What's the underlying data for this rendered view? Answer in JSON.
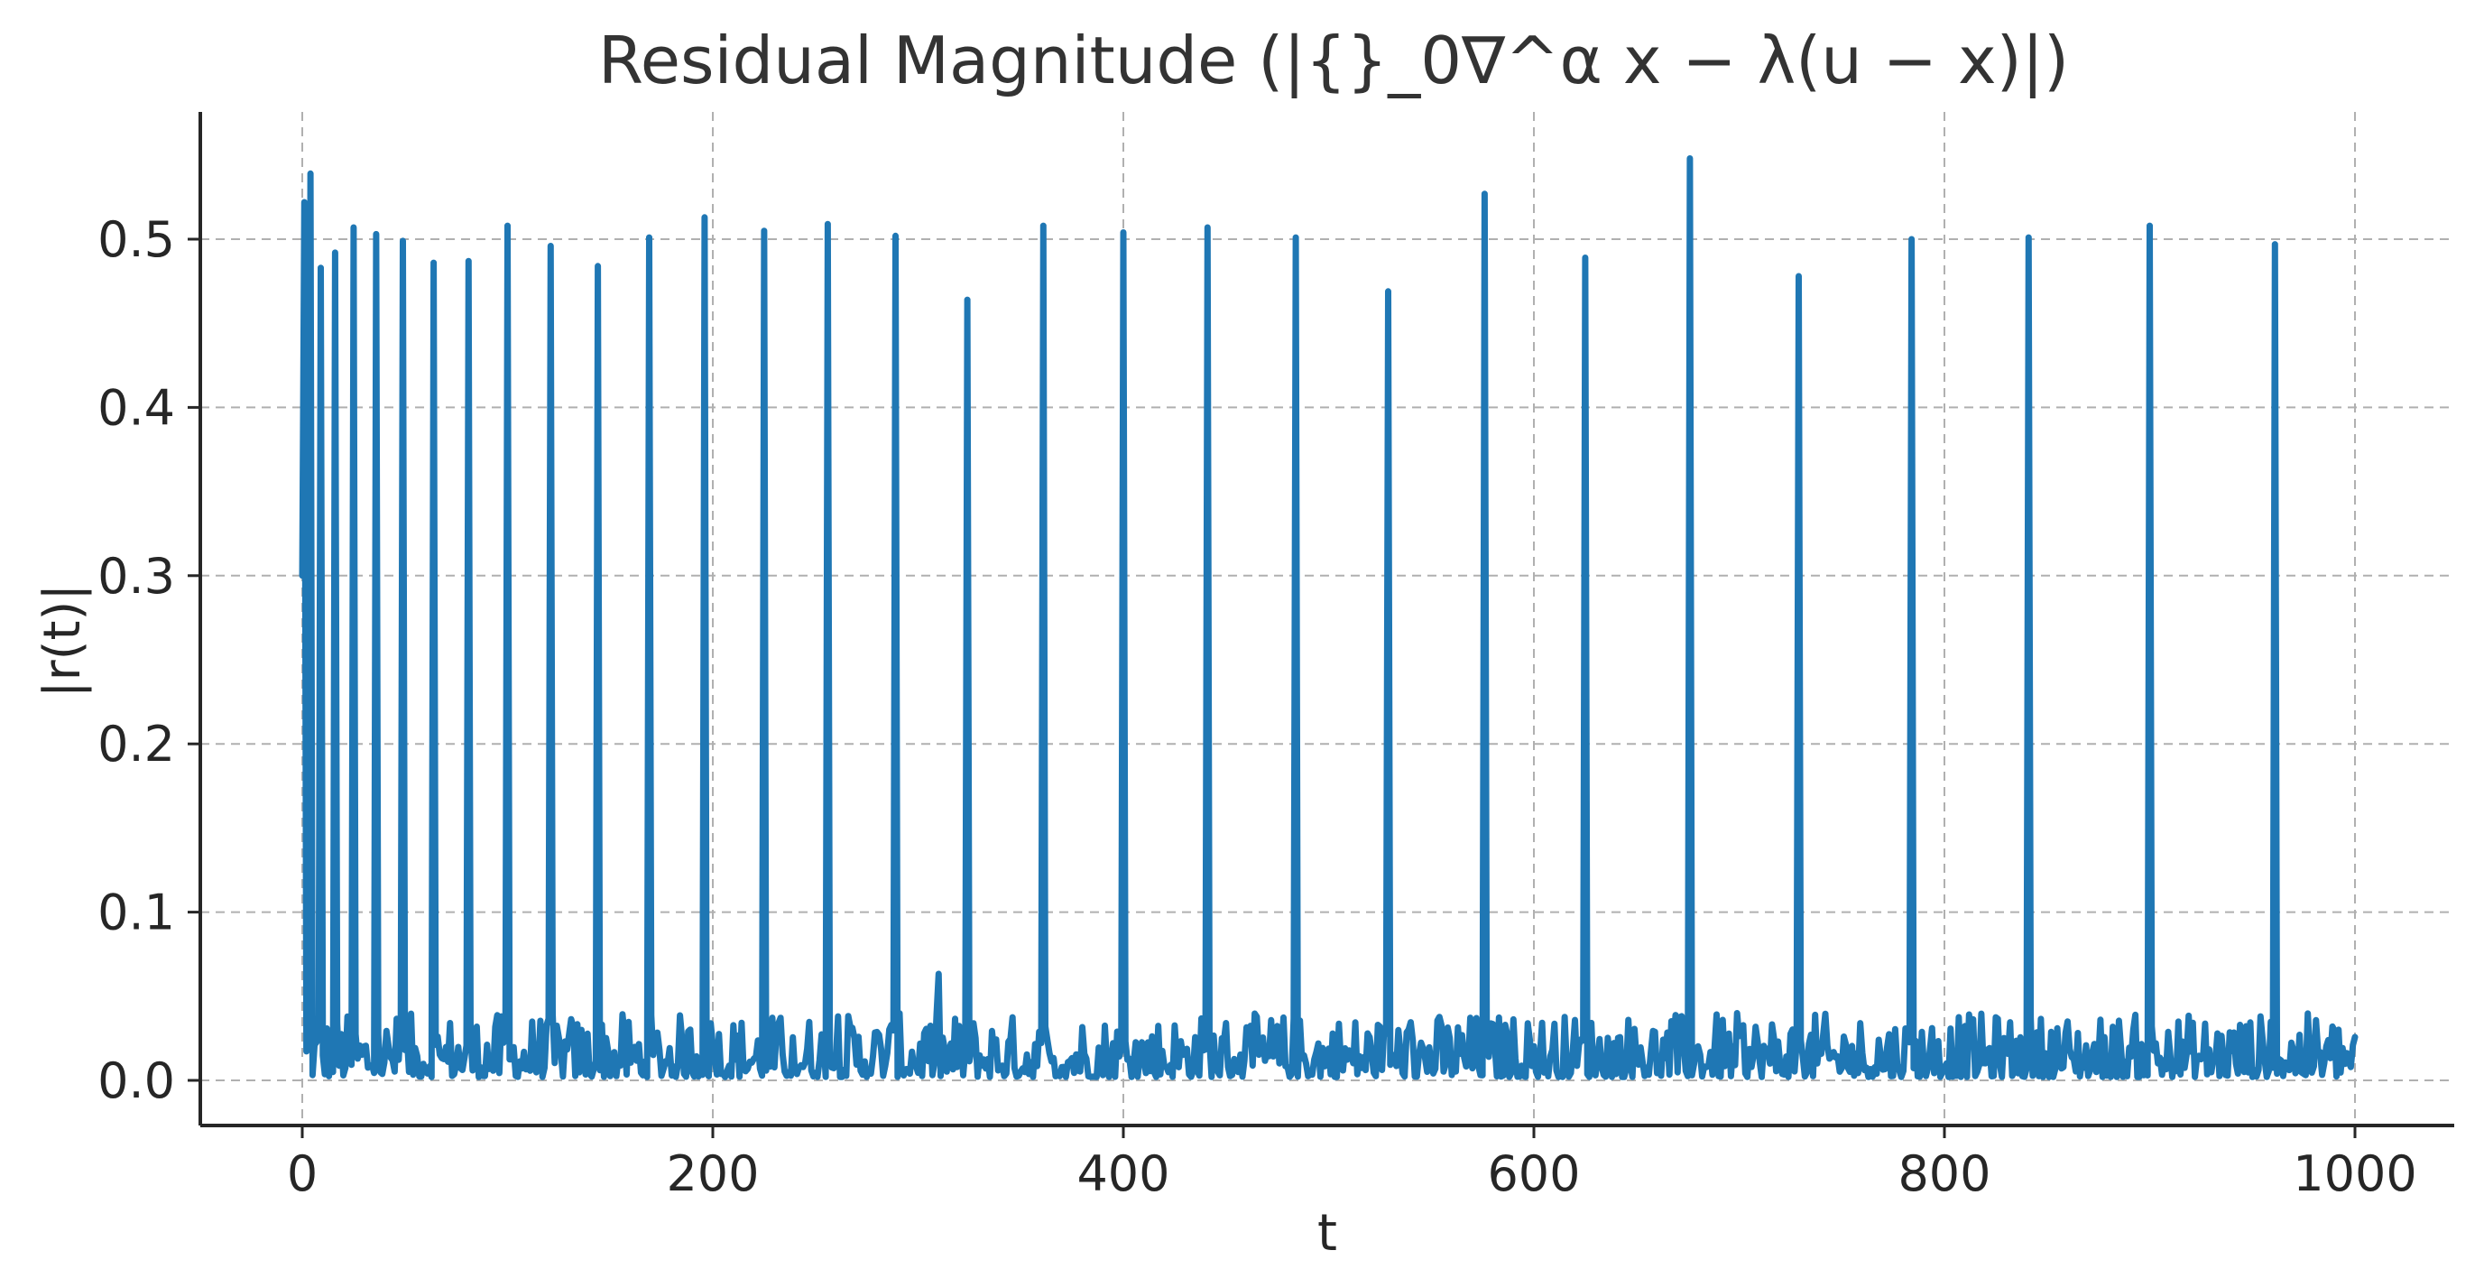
{
  "chart_data": {
    "type": "line",
    "title": "Residual Magnitude (|{}_0∇^α x − λ(u − x)|)",
    "xlabel": "t",
    "ylabel": "|r(t)|",
    "xlim": [
      -50,
      1030
    ],
    "ylim": [
      -0.027,
      0.577
    ],
    "xticks": [
      0,
      200,
      400,
      600,
      800,
      1000
    ],
    "xtick_labels": [
      "0",
      "200",
      "400",
      "600",
      "800",
      "1000"
    ],
    "yticks": [
      0.0,
      0.1,
      0.2,
      0.3,
      0.4,
      0.5
    ],
    "ytick_labels": [
      "0.0",
      "0.1",
      "0.2",
      "0.3",
      "0.4",
      "0.5"
    ],
    "grid": true,
    "legend": "none",
    "colors": {
      "line": "#1f77b4",
      "grid": "#b0b0b0",
      "axis": "#262626"
    },
    "x_range": [
      0,
      1000
    ],
    "baseline_level": 0.017,
    "spikes": [
      {
        "x": 1,
        "y": 0.522
      },
      {
        "x": 4,
        "y": 0.539
      },
      {
        "x": 9,
        "y": 0.483
      },
      {
        "x": 16,
        "y": 0.492
      },
      {
        "x": 25,
        "y": 0.507
      },
      {
        "x": 36,
        "y": 0.503
      },
      {
        "x": 49,
        "y": 0.499
      },
      {
        "x": 64,
        "y": 0.486
      },
      {
        "x": 81,
        "y": 0.487
      },
      {
        "x": 100,
        "y": 0.508
      },
      {
        "x": 121,
        "y": 0.496
      },
      {
        "x": 144,
        "y": 0.484
      },
      {
        "x": 169,
        "y": 0.501
      },
      {
        "x": 196,
        "y": 0.513
      },
      {
        "x": 225,
        "y": 0.505
      },
      {
        "x": 256,
        "y": 0.509
      },
      {
        "x": 289,
        "y": 0.502
      },
      {
        "x": 324,
        "y": 0.464
      },
      {
        "x": 361,
        "y": 0.508
      },
      {
        "x": 400,
        "y": 0.504
      },
      {
        "x": 441,
        "y": 0.507
      },
      {
        "x": 484,
        "y": 0.501
      },
      {
        "x": 529,
        "y": 0.469
      },
      {
        "x": 576,
        "y": 0.527
      },
      {
        "x": 625,
        "y": 0.489
      },
      {
        "x": 676,
        "y": 0.548
      },
      {
        "x": 729,
        "y": 0.478
      },
      {
        "x": 784,
        "y": 0.5
      },
      {
        "x": 841,
        "y": 0.501
      },
      {
        "x": 900,
        "y": 0.508
      },
      {
        "x": 961,
        "y": 0.497
      }
    ],
    "series": [
      {
        "values_note": ""
      }
    ]
  }
}
